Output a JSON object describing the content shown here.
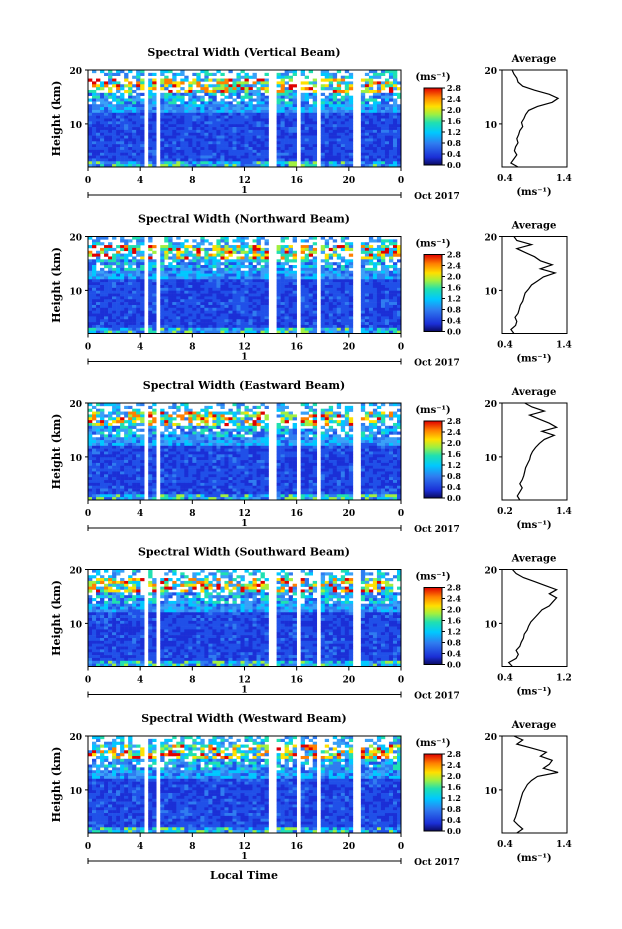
{
  "panels": [
    {
      "title": "Spectral Width (Vertical Beam)",
      "avg_xticks": [
        "0.4",
        "1.4"
      ],
      "avg_profile": [
        0.62,
        0.5,
        0.55,
        0.6,
        0.56,
        0.58,
        0.62,
        0.6,
        0.63,
        0.65,
        0.7,
        0.68,
        0.72,
        0.75,
        0.8,
        0.95,
        1.2,
        1.3,
        1.15,
        0.9,
        0.7,
        0.62,
        0.6,
        0.55,
        0.52
      ]
    },
    {
      "title": "Spectral Width (Northward Beam)",
      "avg_xticks": [
        "0.4",
        "1.4"
      ],
      "avg_profile": [
        0.55,
        0.5,
        0.58,
        0.6,
        0.57,
        0.62,
        0.64,
        0.66,
        0.7,
        0.72,
        0.74,
        0.8,
        0.85,
        0.95,
        1.05,
        1.25,
        1.0,
        1.2,
        1.0,
        0.9,
        0.75,
        0.6,
        0.85,
        0.6,
        0.55
      ]
    },
    {
      "title": "Spectral Width (Eastward Beam)",
      "avg_xticks": [
        "0.2",
        "1.4"
      ],
      "avg_profile": [
        0.5,
        0.45,
        0.5,
        0.55,
        0.5,
        0.55,
        0.58,
        0.6,
        0.62,
        0.66,
        0.7,
        0.72,
        0.76,
        0.82,
        0.9,
        1.0,
        1.2,
        0.95,
        1.25,
        1.1,
        0.9,
        0.7,
        1.0,
        0.75,
        0.6
      ]
    },
    {
      "title": "Spectral Width (Southward Beam)",
      "avg_xticks": [
        "0.4",
        "1.2"
      ],
      "avg_profile": [
        0.5,
        0.45,
        0.55,
        0.58,
        0.55,
        0.6,
        0.62,
        0.65,
        0.66,
        0.7,
        0.72,
        0.75,
        0.8,
        0.85,
        0.9,
        1.0,
        1.05,
        1.1,
        1.0,
        1.1,
        0.95,
        0.8,
        0.65,
        0.55,
        0.5
      ]
    },
    {
      "title": "Spectral Width (Westward Beam)",
      "avg_xticks": [
        "0.4",
        "1.4"
      ],
      "avg_profile": [
        0.6,
        0.7,
        0.62,
        0.55,
        0.58,
        0.6,
        0.62,
        0.64,
        0.66,
        0.68,
        0.7,
        0.74,
        0.78,
        0.85,
        0.95,
        1.3,
        1.05,
        1.15,
        1.2,
        1.0,
        1.1,
        0.85,
        0.6,
        0.7,
        0.55
      ]
    }
  ],
  "common": {
    "ylabel": "Height (km)",
    "yticks": [
      "10",
      "20"
    ],
    "xticks": [
      "0",
      "4",
      "8",
      "12",
      "16",
      "20",
      "0"
    ],
    "day_label": "1",
    "date_label": "Oct 2017",
    "colorbar_unit": "(ms⁻¹)",
    "colorbar_ticks": [
      "0.0",
      "0.4",
      "0.8",
      "1.2",
      "1.6",
      "2.0",
      "2.4",
      "2.8"
    ],
    "avg_title": "Average",
    "avg_yticks": [
      "10",
      "20"
    ],
    "avg_xlabel": "(ms⁻¹)",
    "xlabel": "Local Time"
  },
  "chart_data": {
    "type": "heatmap",
    "x_range_hours": [
      0,
      24
    ],
    "y_range_km": [
      2,
      20
    ],
    "colorbar_range": [
      0.0,
      2.8
    ],
    "data_gaps_hours": [
      [
        4.2,
        4.6
      ],
      [
        5.2,
        5.6
      ],
      [
        14.0,
        14.5
      ],
      [
        16.0,
        16.4
      ],
      [
        17.5,
        17.7
      ],
      [
        20.4,
        20.8
      ]
    ],
    "note_series": [
      "Vertical Beam",
      "Northward Beam",
      "Eastward Beam",
      "Southward Beam",
      "Westward Beam"
    ]
  },
  "colors": {
    "low": "#1b3fd6",
    "mid": "#00c8ff",
    "high": "#ff2000"
  }
}
